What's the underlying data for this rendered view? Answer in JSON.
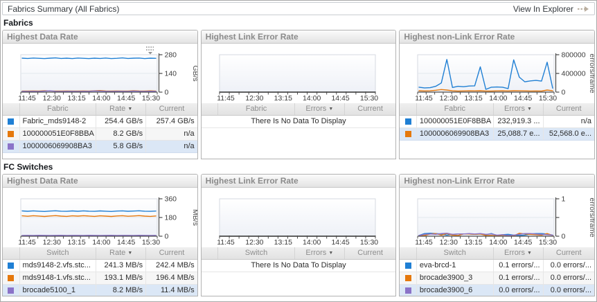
{
  "header": {
    "title": "Fabrics Summary (All Fabrics)",
    "action_label": "View In Explorer"
  },
  "colors": {
    "series": {
      "blue": "#1f7fd4",
      "orange": "#e5780c",
      "purple": "#8b73c8"
    },
    "row_highlight": "#dbe7f6",
    "panel_border": "#b2b2b2",
    "axis": "#4a4a4a",
    "plot_border": "#d6dae1"
  },
  "xticks": [
    "11:45",
    "12:30",
    "13:15",
    "14:00",
    "14:45",
    "15:30"
  ],
  "sections": [
    {
      "title": "Fabrics",
      "panels": [
        {
          "title": "Highest Data Rate",
          "menu_icon": true,
          "chart": {
            "type": "line",
            "ylabel": "GB/s",
            "ymax": 280,
            "yticks": [
              0,
              140,
              280
            ],
            "ytick_labels": [
              "0",
              "140",
              "280"
            ],
            "xticks": [
              "11:45",
              "12:30",
              "13:15",
              "14:00",
              "14:45",
              "15:30"
            ],
            "series": [
              {
                "name": "Fabric_mds9148-2",
                "color": "blue",
                "values": [
                  254,
                  252,
                  255,
                  253,
                  251,
                  254,
                  256,
                  252,
                  254,
                  251,
                  255,
                  253,
                  251,
                  254,
                  252,
                  255,
                  251,
                  253,
                  256,
                  252,
                  254,
                  255,
                  251,
                  254,
                  253
                ]
              },
              {
                "name": "100000051E0F8BBA",
                "color": "orange",
                "values": [
                  8,
                  8,
                  9,
                  8,
                  11,
                  9,
                  8,
                  8,
                  9,
                  8,
                  8,
                  9,
                  8,
                  10,
                  12,
                  9,
                  8,
                  9,
                  8,
                  8,
                  11,
                  9,
                  8,
                  10,
                  8
                ]
              },
              {
                "name": "1000006069908BA3",
                "color": "purple",
                "values": [
                  6,
                  5,
                  6,
                  5,
                  8,
                  10,
                  6,
                  5,
                  6,
                  6,
                  5,
                  6,
                  6,
                  9,
                  8,
                  6,
                  5,
                  6,
                  6,
                  5,
                  8,
                  6,
                  5,
                  7,
                  6
                ]
              }
            ]
          },
          "table": {
            "entity_header": "Fabric",
            "value_header": "Rate",
            "current_header": "Current",
            "rows": [
              {
                "color": "blue",
                "name": "Fabric_mds9148-2",
                "value": "254.4 GB/s",
                "current": "257.4 GB/s"
              },
              {
                "color": "orange",
                "name": "100000051E0F8BBA",
                "value": "8.2 GB/s",
                "current": "n/a"
              },
              {
                "color": "purple",
                "name": "1000006069908BA3",
                "value": "5.8 GB/s",
                "current": "n/a"
              }
            ]
          }
        },
        {
          "title": "Highest Link Error Rate",
          "menu_icon": false,
          "chart": {
            "type": "empty",
            "xticks": [
              "11:45",
              "12:30",
              "13:15",
              "14:00",
              "14:45",
              "15:30"
            ]
          },
          "table": {
            "entity_header": "Fabric",
            "value_header": "Errors",
            "current_header": "Current",
            "empty_text": "There Is No Data To Display",
            "rows": []
          }
        },
        {
          "title": "Highest non-Link Error Rate",
          "menu_icon": false,
          "chart": {
            "type": "line",
            "ylabel": "errors/frame",
            "ymax": 800000,
            "yticks": [
              0,
              400000,
              800000
            ],
            "ytick_labels": [
              "0",
              "400000",
              "800000"
            ],
            "xticks": [
              "11:45",
              "12:30",
              "13:15",
              "14:00",
              "14:45",
              "15:30"
            ],
            "series": [
              {
                "name": "100000051E0F8BBA",
                "color": "blue",
                "values": [
                  105000,
                  90000,
                  95000,
                  125000,
                  195000,
                  700000,
                  100000,
                  125000,
                  115000,
                  130000,
                  135000,
                  540000,
                  60000,
                  105000,
                  110000,
                  105000,
                  75000,
                  690000,
                  320000,
                  220000,
                  240000,
                  250000,
                  235000,
                  640000,
                  85000
                ]
              },
              {
                "name": "1000006069908BA3",
                "color": "orange",
                "values": [
                  30000,
                  25000,
                  28000,
                  40000,
                  55000,
                  45000,
                  28000,
                  22000,
                  25000,
                  28000,
                  26000,
                  30000,
                  24000,
                  22000,
                  26000,
                  28000,
                  25000,
                  30000,
                  28000,
                  26000,
                  24000,
                  25000,
                  22000,
                  45000,
                  28000
                ]
              }
            ]
          },
          "table": {
            "entity_header": "Fabric",
            "value_header": "Errors",
            "current_header": "Current",
            "rows": [
              {
                "color": "blue",
                "name": "100000051E0F8BBA",
                "value": "232,919.3 ...",
                "current": "n/a"
              },
              {
                "color": "orange",
                "name": "1000006069908BA3",
                "value": "25,088.7 e...",
                "current": "52,568.0 e..."
              }
            ]
          }
        }
      ]
    },
    {
      "title": "FC Switches",
      "panels": [
        {
          "title": "Highest Data Rate",
          "menu_icon": false,
          "chart": {
            "type": "line",
            "ylabel": "MB/s",
            "ymax": 360,
            "yticks": [
              0,
              180,
              360
            ],
            "ytick_labels": [
              "0",
              "180",
              "360"
            ],
            "xticks": [
              "11:45",
              "12:30",
              "13:15",
              "14:00",
              "14:45",
              "15:30"
            ],
            "series": [
              {
                "name": "mds9148-2.vfs.stc...",
                "color": "blue",
                "values": [
                  243,
                  240,
                  244,
                  241,
                  238,
                  242,
                  245,
                  241,
                  239,
                  243,
                  240,
                  244,
                  241,
                  239,
                  243,
                  241,
                  238,
                  242,
                  244,
                  240,
                  242,
                  245,
                  241,
                  239,
                  242
                ]
              },
              {
                "name": "mds9148-1.vfs.stc...",
                "color": "orange",
                "values": [
                  196,
                  192,
                  197,
                  194,
                  190,
                  195,
                  198,
                  193,
                  191,
                  196,
                  193,
                  197,
                  194,
                  191,
                  196,
                  193,
                  190,
                  195,
                  197,
                  192,
                  195,
                  198,
                  193,
                  191,
                  195
                ]
              },
              {
                "name": "brocade5100_1",
                "color": "purple",
                "values": [
                  7,
                  8,
                  7,
                  9,
                  8,
                  7,
                  8,
                  9,
                  7,
                  8,
                  8,
                  7,
                  9,
                  8,
                  7,
                  8,
                  9,
                  7,
                  8,
                  8,
                  7,
                  9,
                  8,
                  7,
                  8
                ]
              }
            ]
          },
          "table": {
            "entity_header": "Switch",
            "value_header": "Rate",
            "current_header": "Current",
            "rows": [
              {
                "color": "blue",
                "name": "mds9148-2.vfs.stc...",
                "value": "241.3 MB/s",
                "current": "242.4 MB/s"
              },
              {
                "color": "orange",
                "name": "mds9148-1.vfs.stc...",
                "value": "193.1 MB/s",
                "current": "196.4 MB/s"
              },
              {
                "color": "purple",
                "name": "brocade5100_1",
                "value": "8.2 MB/s",
                "current": "11.4 MB/s"
              }
            ]
          }
        },
        {
          "title": "Highest Link Error Rate",
          "menu_icon": false,
          "chart": {
            "type": "empty",
            "xticks": [
              "11:45",
              "12:30",
              "13:15",
              "14:00",
              "14:45",
              "15:30"
            ]
          },
          "table": {
            "entity_header": "Switch",
            "value_header": "Errors",
            "current_header": "Current",
            "empty_text": "There Is No Data To Display",
            "rows": []
          }
        },
        {
          "title": "Highest non-Link Error Rate",
          "menu_icon": false,
          "chart": {
            "type": "line",
            "ylabel": "errors/frame",
            "ymax": 1,
            "yticks": [
              0,
              0.5,
              1
            ],
            "ytick_labels": [
              "0",
              "",
              "1"
            ],
            "xticks": [
              "11:45",
              "12:30",
              "13:15",
              "14:00",
              "14:45",
              "15:30"
            ],
            "series": [
              {
                "name": "eva-brcd-1",
                "color": "blue",
                "values": [
                  0.02,
                  0.07,
                  0.08,
                  0.07,
                  0.06,
                  0.03,
                  0.05,
                  0.06,
                  0.06,
                  0.06,
                  0.05,
                  0.06,
                  0.04,
                  0.07,
                  0.02,
                  0.04,
                  0.05,
                  0.03,
                  0.02,
                  0.03,
                  0.06,
                  0.07,
                  0.07,
                  0.06,
                  0.03
                ]
              },
              {
                "name": "brocade3900_3",
                "color": "orange",
                "values": [
                  0.01,
                  0.02,
                  0.06,
                  0.07,
                  0.03,
                  0.07,
                  0.03,
                  0.02,
                  0.06,
                  0.06,
                  0.05,
                  0.06,
                  0.02,
                  0.02,
                  0.01,
                  0.03,
                  0.02,
                  0.01,
                  0.08,
                  0.06,
                  0.05,
                  0.04,
                  0.03,
                  0.07,
                  0.02
                ]
              },
              {
                "name": "brocade3900_6",
                "color": "purple",
                "values": [
                  0.02,
                  0.05,
                  0.06,
                  0.05,
                  0.07,
                  0.08,
                  0.05,
                  0.06,
                  0.06,
                  0.07,
                  0.06,
                  0.07,
                  0.05,
                  0.06,
                  0.03,
                  0.04,
                  0.02,
                  0.03,
                  0.05,
                  0.07,
                  0.07,
                  0.06,
                  0.05,
                  0.04,
                  0.03
                ]
              }
            ]
          },
          "table": {
            "entity_header": "Switch",
            "value_header": "Errors",
            "current_header": "Current",
            "rows": [
              {
                "color": "blue",
                "name": "eva-brcd-1",
                "value": "0.1 errors/...",
                "current": "0.0 errors/..."
              },
              {
                "color": "orange",
                "name": "brocade3900_3",
                "value": "0.1 errors/...",
                "current": "0.0 errors/..."
              },
              {
                "color": "purple",
                "name": "brocade3900_6",
                "value": "0.0 errors/...",
                "current": "0.0 errors/..."
              }
            ]
          }
        }
      ]
    }
  ]
}
